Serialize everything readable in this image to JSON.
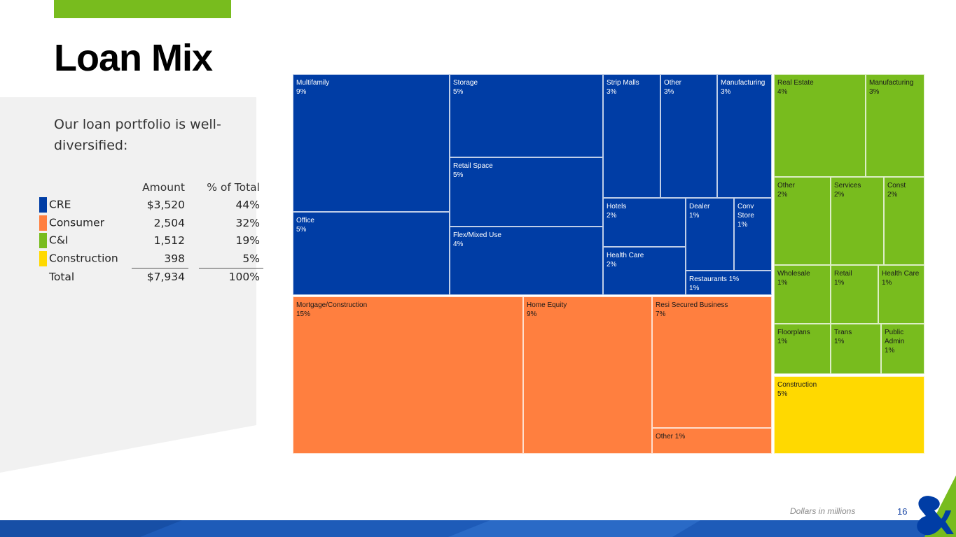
{
  "title": "Loan Mix",
  "intro": "Our loan portfolio is well-diversified:",
  "table": {
    "headers": [
      "",
      "Amount",
      "% of Total"
    ],
    "rows": [
      {
        "name": "CRE",
        "amount": "$3,520",
        "pct": "44%",
        "color": "#003da5"
      },
      {
        "name": "Consumer",
        "amount": "2,504",
        "pct": "32%",
        "color": "#ff7f3f"
      },
      {
        "name": "C&I",
        "amount": "1,512",
        "pct": "19%",
        "color": "#78bc1e"
      },
      {
        "name": "Construction",
        "amount": "398",
        "pct": "5%",
        "color": "#ffd900"
      }
    ],
    "total": {
      "name": "Total",
      "amount": "$7,934",
      "pct": "100%"
    }
  },
  "colors": {
    "cre": "#003da5",
    "consumer": "#ff7f3f",
    "ci": "#78bc1e",
    "construction": "#ffd900",
    "accent": "#78bc1e",
    "band": "#1e5bb8"
  },
  "chart_data": {
    "type": "treemap",
    "groups": [
      {
        "name": "CRE",
        "color": "#003da5",
        "items": [
          {
            "name": "Multifamily",
            "value": 9
          },
          {
            "name": "Office",
            "value": 5
          },
          {
            "name": "Storage",
            "value": 5
          },
          {
            "name": "Retail Space",
            "value": 5
          },
          {
            "name": "Flex/Mixed Use",
            "value": 4
          },
          {
            "name": "Strip Malls",
            "value": 3
          },
          {
            "name": "Other",
            "value": 3
          },
          {
            "name": "Manufacturing",
            "value": 3
          },
          {
            "name": "Hotels",
            "value": 2
          },
          {
            "name": "Health Care",
            "value": 2
          },
          {
            "name": "Dealer",
            "value": 1
          },
          {
            "name": "Conv Store",
            "value": 1
          },
          {
            "name": "Restaurants",
            "value": 1
          }
        ]
      },
      {
        "name": "Consumer",
        "color": "#ff7f3f",
        "items": [
          {
            "name": "Mortgage/Construction",
            "value": 15
          },
          {
            "name": "Home Equity",
            "value": 9
          },
          {
            "name": "Resi Secured Business",
            "value": 7
          },
          {
            "name": "Other",
            "value": 1
          }
        ]
      },
      {
        "name": "C&I",
        "color": "#78bc1e",
        "items": [
          {
            "name": "Real Estate",
            "value": 4
          },
          {
            "name": "Manufacturing",
            "value": 3
          },
          {
            "name": "Other",
            "value": 2
          },
          {
            "name": "Services",
            "value": 2
          },
          {
            "name": "Const",
            "value": 2
          },
          {
            "name": "Wholesale",
            "value": 1
          },
          {
            "name": "Retail",
            "value": 1
          },
          {
            "name": "Health Care",
            "value": 1
          },
          {
            "name": "Floorplans",
            "value": 1
          },
          {
            "name": "Trans",
            "value": 1
          },
          {
            "name": "Public Admin",
            "value": 1
          }
        ]
      },
      {
        "name": "Construction",
        "color": "#ffd900",
        "items": [
          {
            "name": "Construction",
            "value": 5
          }
        ]
      }
    ]
  },
  "treemap_labels": [
    {
      "label": "Multifamily\n9%",
      "color": "#003da5",
      "text": "#ffffff"
    },
    {
      "label": "Office\n5%",
      "color": "#003da5",
      "text": "#ffffff"
    },
    {
      "label": "Storage\n5%",
      "color": "#003da5",
      "text": "#ffffff"
    },
    {
      "label": "Retail Space\n5%",
      "color": "#003da5",
      "text": "#ffffff"
    },
    {
      "label": "Flex/Mixed Use\n4%",
      "color": "#003da5",
      "text": "#ffffff"
    },
    {
      "label": "Strip Malls\n3%",
      "color": "#003da5",
      "text": "#ffffff"
    },
    {
      "label": "Other\n3%",
      "color": "#003da5",
      "text": "#ffffff"
    },
    {
      "label": "Manufacturing\n3%",
      "color": "#003da5",
      "text": "#ffffff"
    },
    {
      "label": "Hotels\n2%",
      "color": "#003da5",
      "text": "#ffffff"
    },
    {
      "label": "Health Care\n2%",
      "color": "#003da5",
      "text": "#ffffff"
    },
    {
      "label": "Dealer\n1%",
      "color": "#003da5",
      "text": "#ffffff"
    },
    {
      "label": "Conv\nStore\n1%",
      "color": "#003da5",
      "text": "#ffffff"
    },
    {
      "label": "Restaurants 1%\n1%",
      "color": "#003da5",
      "text": "#ffffff"
    },
    {
      "label": "Mortgage/Construction\n15%",
      "color": "#ff7f3f",
      "text": "#1a1a1a"
    },
    {
      "label": "Home Equity\n9%",
      "color": "#ff7f3f",
      "text": "#1a1a1a"
    },
    {
      "label": "Resi Secured Business\n7%",
      "color": "#ff7f3f",
      "text": "#1a1a1a"
    },
    {
      "label": "Other 1%",
      "color": "#ff7f3f",
      "text": "#1a1a1a"
    },
    {
      "label": "Real Estate\n4%",
      "color": "#78bc1e",
      "text": "#1a1a1a"
    },
    {
      "label": "Manufacturing\n3%",
      "color": "#78bc1e",
      "text": "#1a1a1a"
    },
    {
      "label": "Other\n2%",
      "color": "#78bc1e",
      "text": "#1a1a1a"
    },
    {
      "label": "Services\n2%",
      "color": "#78bc1e",
      "text": "#1a1a1a"
    },
    {
      "label": "Const\n2%",
      "color": "#78bc1e",
      "text": "#1a1a1a"
    },
    {
      "label": "Wholesale\n1%",
      "color": "#78bc1e",
      "text": "#1a1a1a"
    },
    {
      "label": "Retail\n1%",
      "color": "#78bc1e",
      "text": "#1a1a1a"
    },
    {
      "label": "Health Care\n1%",
      "color": "#78bc1e",
      "text": "#1a1a1a"
    },
    {
      "label": "Floorplans\n1%",
      "color": "#78bc1e",
      "text": "#1a1a1a"
    },
    {
      "label": "Trans\n1%",
      "color": "#78bc1e",
      "text": "#1a1a1a"
    },
    {
      "label": "Public\nAdmin\n1%",
      "color": "#78bc1e",
      "text": "#1a1a1a"
    },
    {
      "label": "Construction\n5%",
      "color": "#ffd900",
      "text": "#1a1a1a"
    }
  ],
  "footer": {
    "note": "Dollars in millions",
    "page": "16"
  }
}
